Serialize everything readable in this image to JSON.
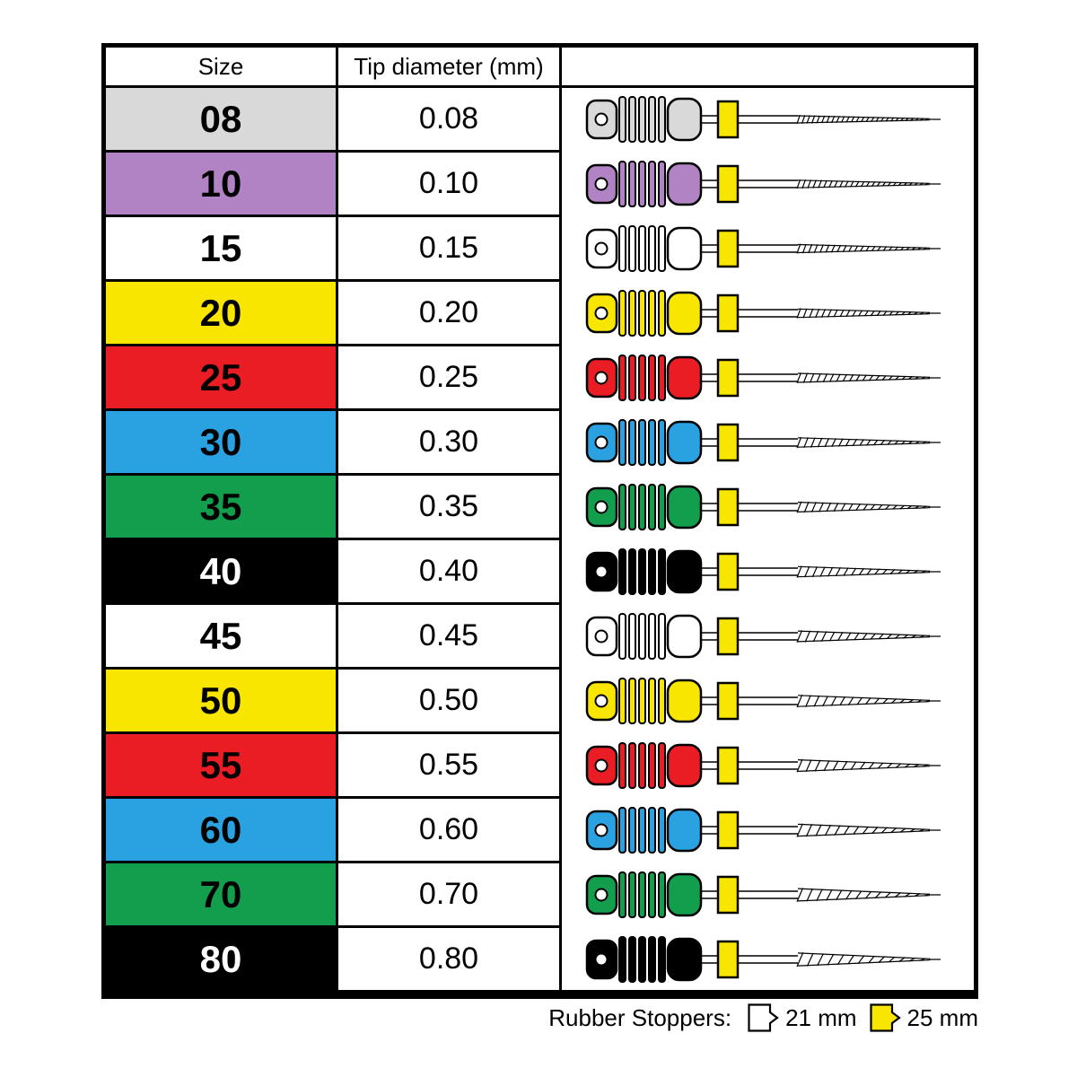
{
  "table": {
    "headers": {
      "size": "Size",
      "tip_diameter": "Tip diameter (mm)"
    },
    "rows": [
      {
        "size": "08",
        "diameter": "0.08",
        "color": "#d9d9d9",
        "text_color": "#000000"
      },
      {
        "size": "10",
        "diameter": "0.10",
        "color": "#b283c4",
        "text_color": "#000000"
      },
      {
        "size": "15",
        "diameter": "0.15",
        "color": "#ffffff",
        "text_color": "#000000"
      },
      {
        "size": "20",
        "diameter": "0.20",
        "color": "#f8e600",
        "text_color": "#000000"
      },
      {
        "size": "25",
        "diameter": "0.25",
        "color": "#ea1c24",
        "text_color": "#000000"
      },
      {
        "size": "30",
        "diameter": "0.30",
        "color": "#2aa2e2",
        "text_color": "#000000"
      },
      {
        "size": "35",
        "diameter": "0.35",
        "color": "#129e4c",
        "text_color": "#000000"
      },
      {
        "size": "40",
        "diameter": "0.40",
        "color": "#000000",
        "text_color": "#ffffff"
      },
      {
        "size": "45",
        "diameter": "0.45",
        "color": "#ffffff",
        "text_color": "#000000"
      },
      {
        "size": "50",
        "diameter": "0.50",
        "color": "#f8e600",
        "text_color": "#000000"
      },
      {
        "size": "55",
        "diameter": "0.55",
        "color": "#ea1c24",
        "text_color": "#000000"
      },
      {
        "size": "60",
        "diameter": "0.60",
        "color": "#2aa2e2",
        "text_color": "#000000"
      },
      {
        "size": "70",
        "diameter": "0.70",
        "color": "#129e4c",
        "text_color": "#000000"
      },
      {
        "size": "80",
        "diameter": "0.80",
        "color": "#000000",
        "text_color": "#ffffff"
      }
    ]
  },
  "illustration": {
    "stopper_color": "#f8e600",
    "outline_color": "#000000",
    "hole_color": "#ffffff"
  },
  "legend": {
    "label": "Rubber Stoppers:",
    "items": [
      {
        "label": "21 mm",
        "color": "#ffffff"
      },
      {
        "label": "25 mm",
        "color": "#f8e600"
      }
    ]
  }
}
